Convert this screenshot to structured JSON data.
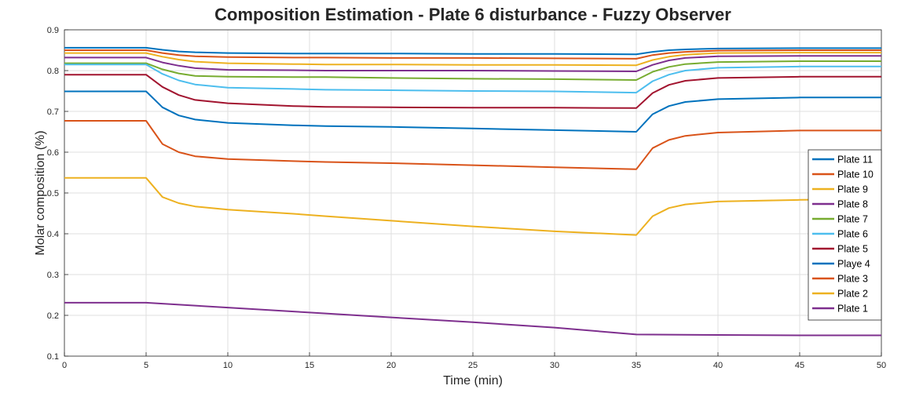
{
  "chart_data": {
    "type": "line",
    "title": "Composition Estimation - Plate 6 disturbance - Fuzzy Observer",
    "xlabel": "Time (min)",
    "ylabel": "Molar composition (%)",
    "xlim": [
      0,
      50
    ],
    "ylim": [
      0.1,
      0.9
    ],
    "xticks": [
      0,
      5,
      10,
      15,
      20,
      25,
      30,
      35,
      40,
      45,
      50
    ],
    "yticks": [
      0.1,
      0.2,
      0.3,
      0.4,
      0.5,
      0.6,
      0.7,
      0.8,
      0.9
    ],
    "grid": true,
    "legend_position": "right",
    "series": [
      {
        "name": "Plate 11",
        "color": "#0072BD",
        "x": [
          0,
          5,
          6,
          7,
          8,
          10,
          14,
          16,
          20,
          25,
          30,
          35,
          36,
          37,
          38,
          40,
          45,
          50
        ],
        "y": [
          0.856,
          0.856,
          0.851,
          0.847,
          0.845,
          0.843,
          0.842,
          0.842,
          0.842,
          0.841,
          0.841,
          0.84,
          0.846,
          0.85,
          0.852,
          0.854,
          0.855,
          0.855
        ]
      },
      {
        "name": "Plate 10",
        "color": "#D95319",
        "x": [
          0,
          5,
          6,
          7,
          8,
          10,
          14,
          16,
          20,
          25,
          30,
          35,
          36,
          37,
          38,
          40,
          45,
          50
        ],
        "y": [
          0.85,
          0.85,
          0.843,
          0.838,
          0.835,
          0.833,
          0.832,
          0.832,
          0.831,
          0.831,
          0.83,
          0.829,
          0.838,
          0.843,
          0.846,
          0.849,
          0.85,
          0.85
        ]
      },
      {
        "name": "Plate 9",
        "color": "#EDB120",
        "x": [
          0,
          5,
          6,
          7,
          8,
          10,
          14,
          16,
          20,
          25,
          30,
          35,
          36,
          37,
          38,
          40,
          45,
          50
        ],
        "y": [
          0.843,
          0.843,
          0.834,
          0.827,
          0.822,
          0.818,
          0.816,
          0.815,
          0.815,
          0.814,
          0.814,
          0.813,
          0.826,
          0.834,
          0.839,
          0.843,
          0.844,
          0.844
        ]
      },
      {
        "name": "Plate 8",
        "color": "#7E2F8E",
        "x": [
          0,
          5,
          6,
          7,
          8,
          10,
          14,
          16,
          20,
          25,
          30,
          35,
          36,
          37,
          38,
          40,
          45,
          50
        ],
        "y": [
          0.832,
          0.832,
          0.82,
          0.812,
          0.806,
          0.802,
          0.801,
          0.8,
          0.8,
          0.8,
          0.799,
          0.798,
          0.814,
          0.825,
          0.831,
          0.835,
          0.836,
          0.836
        ]
      },
      {
        "name": "Plate 7",
        "color": "#77AC30",
        "x": [
          0,
          5,
          6,
          7,
          8,
          10,
          14,
          16,
          20,
          25,
          30,
          35,
          36,
          37,
          38,
          40,
          45,
          50
        ],
        "y": [
          0.818,
          0.818,
          0.803,
          0.793,
          0.787,
          0.785,
          0.784,
          0.784,
          0.782,
          0.78,
          0.779,
          0.777,
          0.797,
          0.809,
          0.816,
          0.821,
          0.823,
          0.823
        ]
      },
      {
        "name": "Plate 6",
        "color": "#4DBEEE",
        "x": [
          0,
          5,
          6,
          7,
          8,
          10,
          14,
          16,
          20,
          25,
          30,
          35,
          36,
          37,
          38,
          40,
          45,
          50
        ],
        "y": [
          0.815,
          0.815,
          0.792,
          0.776,
          0.766,
          0.758,
          0.755,
          0.753,
          0.752,
          0.75,
          0.749,
          0.746,
          0.774,
          0.79,
          0.8,
          0.807,
          0.81,
          0.81
        ]
      },
      {
        "name": "Plate 5",
        "color": "#A2142F",
        "x": [
          0,
          5,
          6,
          7,
          8,
          10,
          14,
          16,
          20,
          25,
          30,
          35,
          36,
          37,
          38,
          40,
          45,
          50
        ],
        "y": [
          0.79,
          0.79,
          0.76,
          0.74,
          0.728,
          0.72,
          0.713,
          0.711,
          0.71,
          0.709,
          0.709,
          0.708,
          0.745,
          0.765,
          0.775,
          0.782,
          0.785,
          0.785
        ]
      },
      {
        "name": "Playe 4",
        "color": "#0072BD",
        "x": [
          0,
          5,
          6,
          7,
          8,
          10,
          14,
          16,
          20,
          25,
          30,
          35,
          36,
          37,
          38,
          40,
          45,
          50
        ],
        "y": [
          0.749,
          0.749,
          0.71,
          0.69,
          0.68,
          0.672,
          0.666,
          0.664,
          0.662,
          0.658,
          0.654,
          0.65,
          0.693,
          0.713,
          0.723,
          0.73,
          0.734,
          0.734
        ]
      },
      {
        "name": "Plate 3",
        "color": "#D95319",
        "x": [
          0,
          5,
          6,
          7,
          8,
          10,
          14,
          16,
          20,
          25,
          30,
          35,
          36,
          37,
          38,
          40,
          45,
          50
        ],
        "y": [
          0.677,
          0.677,
          0.62,
          0.6,
          0.59,
          0.583,
          0.578,
          0.576,
          0.573,
          0.568,
          0.563,
          0.558,
          0.61,
          0.63,
          0.64,
          0.648,
          0.653,
          0.653
        ]
      },
      {
        "name": "Plate 2",
        "color": "#EDB120",
        "x": [
          0,
          5,
          6,
          7,
          8,
          10,
          14,
          16,
          20,
          25,
          30,
          35,
          36,
          37,
          38,
          40,
          45,
          50
        ],
        "y": [
          0.537,
          0.537,
          0.49,
          0.475,
          0.467,
          0.459,
          0.449,
          0.443,
          0.432,
          0.418,
          0.406,
          0.397,
          0.443,
          0.463,
          0.472,
          0.479,
          0.483,
          0.485
        ]
      },
      {
        "name": "Plate 1",
        "color": "#7E2F8E",
        "x": [
          0,
          5,
          10,
          15,
          20,
          25,
          30,
          35,
          40,
          45,
          50
        ],
        "y": [
          0.231,
          0.231,
          0.219,
          0.207,
          0.195,
          0.183,
          0.17,
          0.153,
          0.152,
          0.151,
          0.151
        ]
      }
    ]
  }
}
